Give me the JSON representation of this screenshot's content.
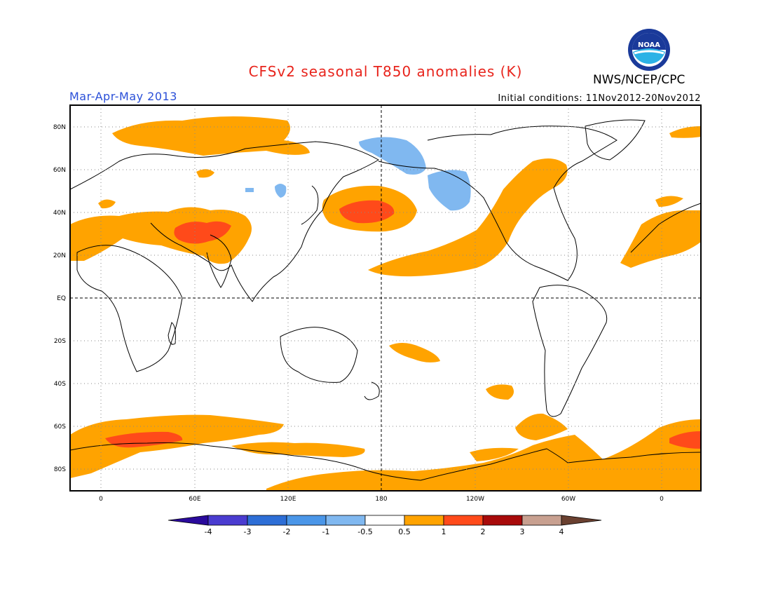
{
  "header": {
    "title": "CFSv2 seasonal T850 anomalies (K)",
    "agency": "NWS/NCEP/CPC",
    "season": "Mar-Apr-May 2013",
    "initial_conditions": "Initial conditions: 11Nov2012-20Nov2012",
    "logo_text": "NOAA"
  },
  "map": {
    "projection": "equirectangular",
    "center_longitude": "180",
    "gridlines": "dotted",
    "lat_labels": [
      "80N",
      "60N",
      "40N",
      "20N",
      "EQ",
      "20S",
      "40S",
      "60S",
      "80S"
    ],
    "lon_labels": [
      "0",
      "60E",
      "120E",
      "180",
      "120W",
      "60W",
      "0"
    ]
  },
  "colorbar": {
    "labels": [
      "-4",
      "-3",
      "-2",
      "-1",
      "-0.5",
      "0.5",
      "1",
      "2",
      "3",
      "4"
    ],
    "colors": [
      "#2a0a9c",
      "#4a3cd0",
      "#2d6ed6",
      "#4a96e8",
      "#80b8f0",
      "#ffffff",
      "#ffa300",
      "#ff4a1a",
      "#a80a0a",
      "#c8a090",
      "#6a4030"
    ]
  },
  "colors": {
    "warm_0_5_to_1": "#ffa300",
    "warm_1_to_2": "#ff4a1a",
    "cool_neg0_5_to_neg1": "#80b8f0",
    "title": "#e8241c",
    "season": "#2a4fd8"
  }
}
